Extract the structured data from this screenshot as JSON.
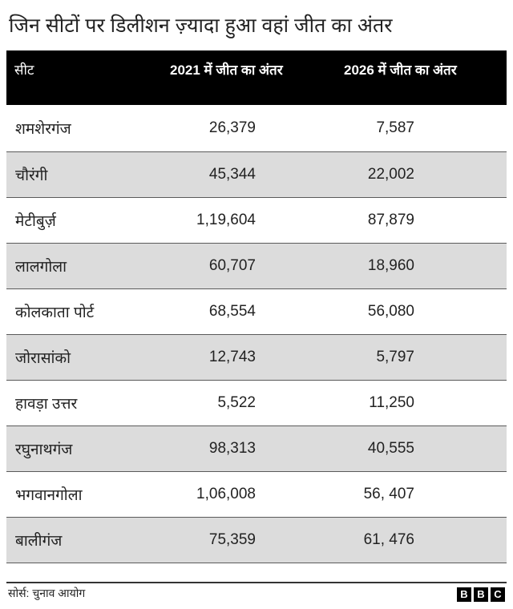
{
  "title": "जिन सीटों पर डिलीशन ज़्यादा हुआ वहां जीत का अंतर",
  "source": "सोर्स: चुनाव आयोग",
  "logo_letters": [
    "B",
    "B",
    "C"
  ],
  "colors": {
    "header_bg": "#000000",
    "header_text": "#ffffff",
    "shaded_row": "#dcdcdc",
    "text": "#222222"
  },
  "chart_data": {
    "type": "table",
    "columns": [
      "सीट",
      "2021 में जीत का अंतर",
      "2026 में जीत का अंतर"
    ],
    "rows": [
      [
        "शमशेरगंज",
        "26,379",
        "7,587"
      ],
      [
        "चौरंगी",
        "45,344",
        "22,002"
      ],
      [
        "मेटीबुर्ज़",
        "1,19,604",
        "87,879"
      ],
      [
        "लालगोला",
        "60,707",
        "18,960"
      ],
      [
        "कोलकाता पोर्ट",
        "68,554",
        "56,080"
      ],
      [
        "जोरासांको",
        "12,743",
        "5,797"
      ],
      [
        "हावड़ा उत्तर",
        "5,522",
        "11,250"
      ],
      [
        "रघुनाथगंज",
        "98,313",
        "40,555"
      ],
      [
        "भगवानगोला",
        "1,06,008",
        "56, 407"
      ],
      [
        "बालीगंज",
        "75,359",
        "61, 476"
      ]
    ]
  }
}
